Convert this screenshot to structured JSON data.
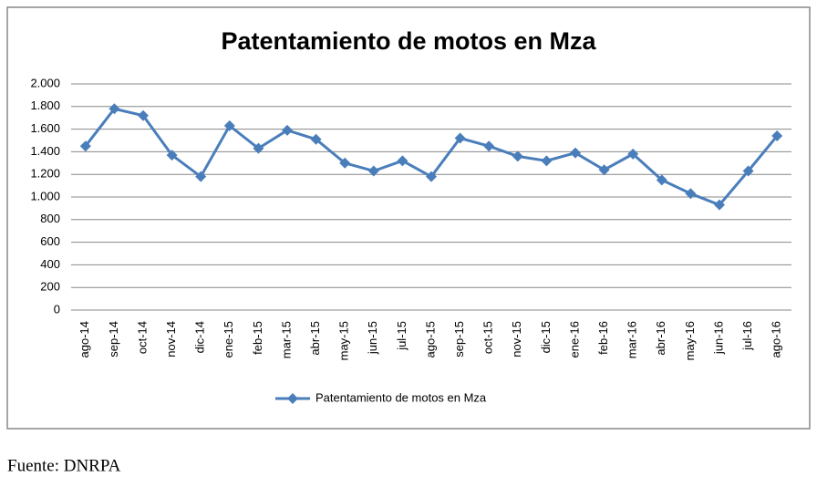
{
  "chart_data": {
    "type": "line",
    "title": "Patentamiento de motos en Mza",
    "categories": [
      "ago-14",
      "sep-14",
      "oct-14",
      "nov-14",
      "dic-14",
      "ene-15",
      "feb-15",
      "mar-15",
      "abr-15",
      "may-15",
      "jun-15",
      "jul-15",
      "ago-15",
      "sep-15",
      "oct-15",
      "nov-15",
      "dic-15",
      "ene-16",
      "feb-16",
      "mar-16",
      "abr-16",
      "may-16",
      "jun-16",
      "jul-16",
      "ago-16"
    ],
    "series": [
      {
        "name": "Patentamiento de motos en Mza",
        "color": "#4a7ebb",
        "values": [
          1450,
          1780,
          1720,
          1370,
          1180,
          1630,
          1430,
          1590,
          1510,
          1300,
          1230,
          1320,
          1180,
          1520,
          1450,
          1360,
          1320,
          1390,
          1240,
          1380,
          1150,
          1030,
          930,
          1230,
          1540
        ]
      }
    ],
    "ylim": [
      0,
      2000
    ],
    "yticks": [
      0,
      200,
      400,
      600,
      800,
      {
        "value": 1000,
        "label": "1.000"
      },
      {
        "value": 1200,
        "label": "1.200"
      },
      {
        "value": 1400,
        "label": "1.400"
      },
      {
        "value": 1600,
        "label": "1.600"
      },
      {
        "value": 1800,
        "label": "1.800"
      },
      {
        "value": 2000,
        "label": "2.000"
      }
    ],
    "grid": true,
    "legend": "bottom"
  },
  "source": "Fuente: DNRPA"
}
